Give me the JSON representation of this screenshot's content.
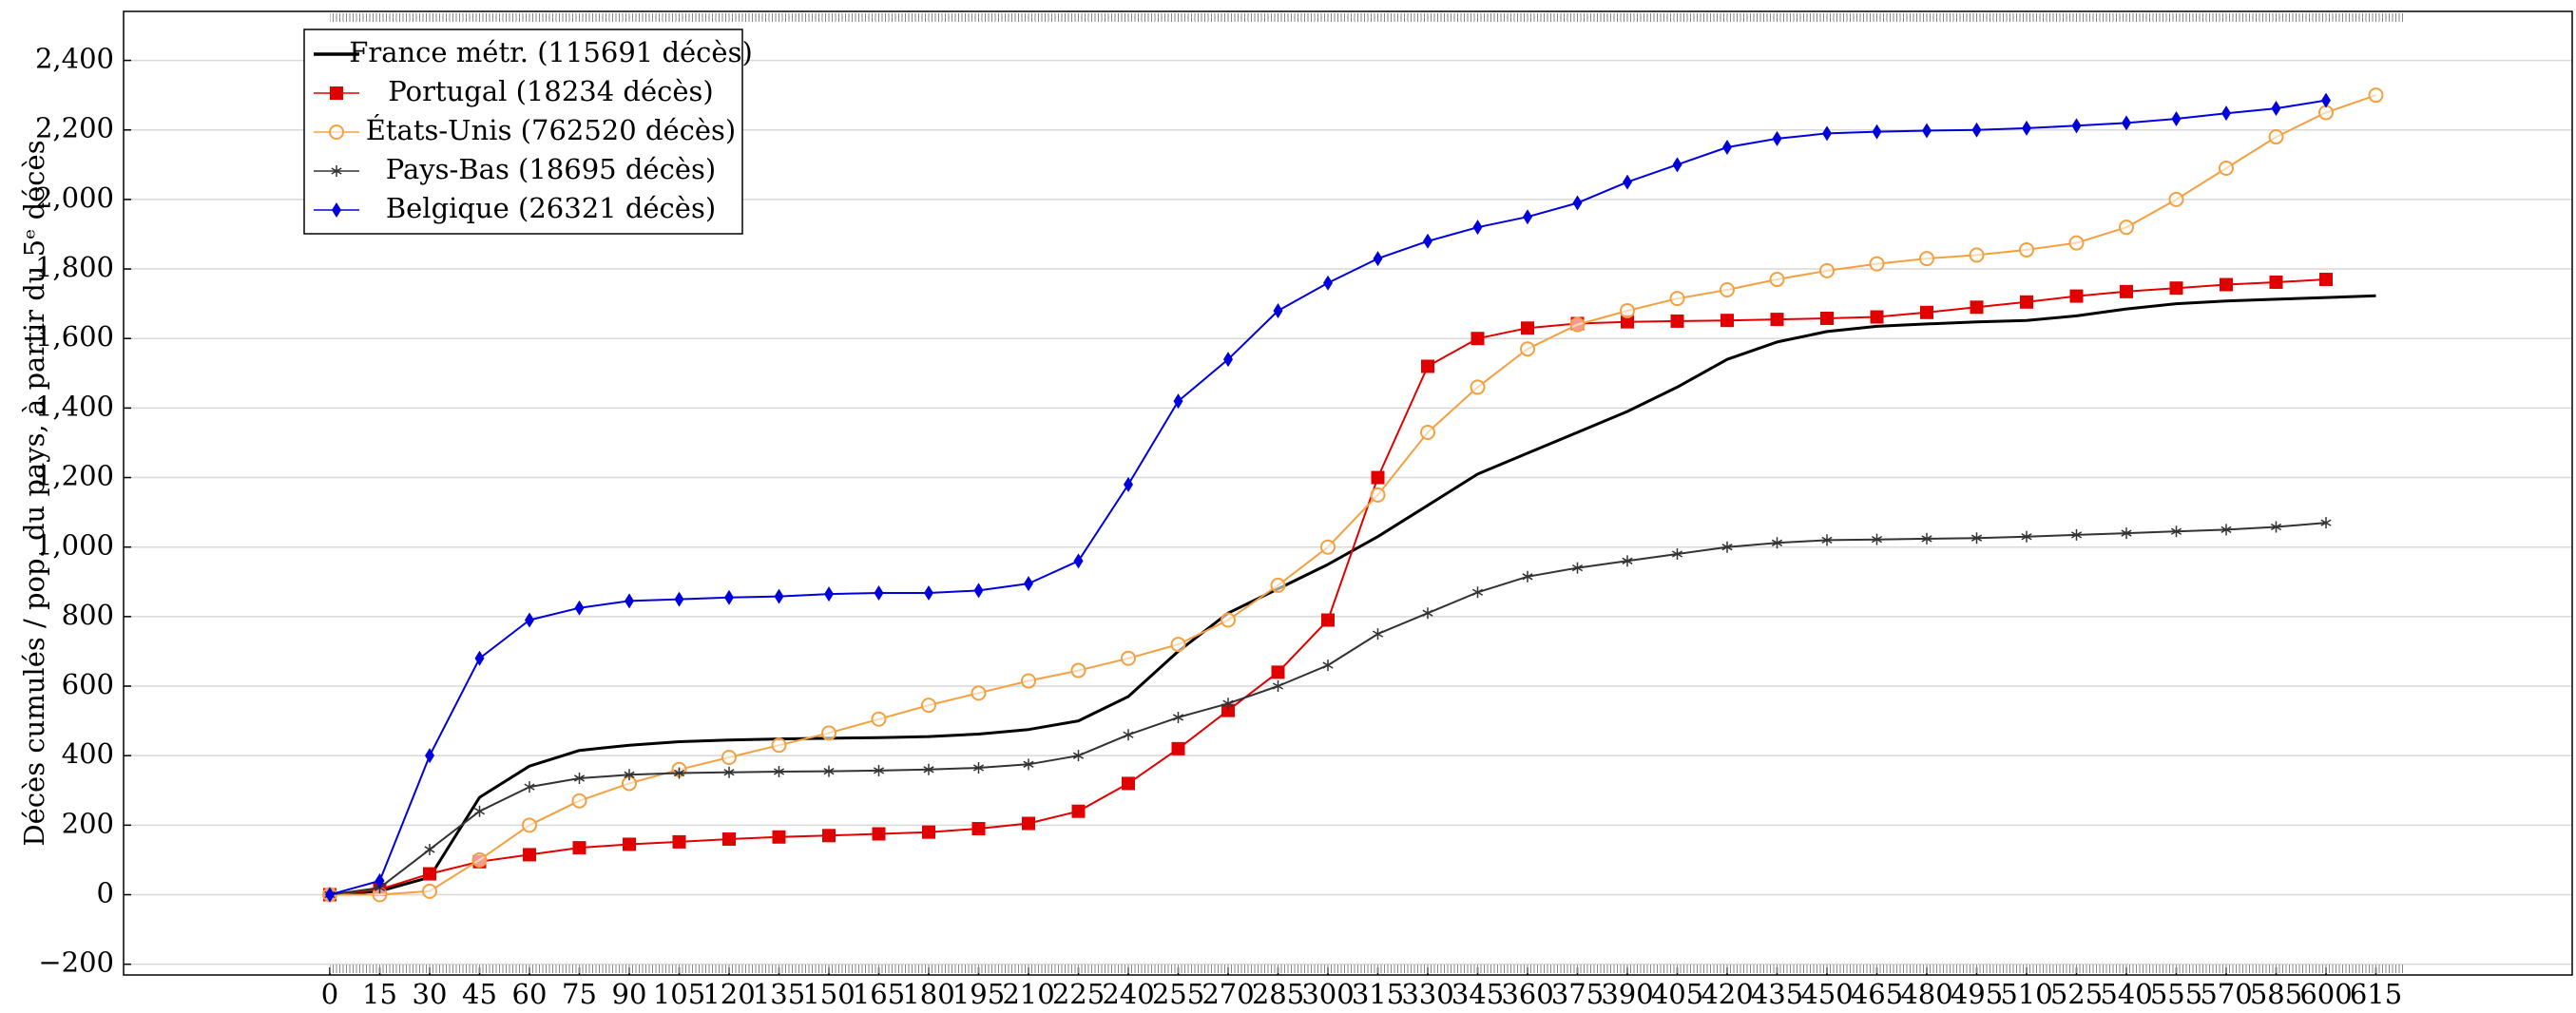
{
  "chart_data": {
    "type": "line",
    "y_label": "Décès cumulés / pop. du pays, à partir du 5ᵉ décès",
    "x": [
      0,
      15,
      30,
      45,
      60,
      75,
      90,
      105,
      120,
      135,
      150,
      165,
      180,
      195,
      210,
      225,
      240,
      255,
      270,
      285,
      300,
      315,
      330,
      345,
      360,
      375,
      390,
      405,
      420,
      435,
      450,
      465,
      480,
      495,
      510,
      525,
      540,
      555,
      570,
      585,
      600,
      615
    ],
    "xlim": [
      -62,
      674
    ],
    "xticks": [
      0,
      15,
      30,
      45,
      60,
      75,
      90,
      105,
      120,
      135,
      150,
      165,
      180,
      195,
      210,
      225,
      240,
      255,
      270,
      285,
      300,
      315,
      330,
      345,
      360,
      375,
      390,
      405,
      420,
      435,
      450,
      465,
      480,
      495,
      510,
      525,
      540,
      555,
      570,
      585,
      600,
      615
    ],
    "ylim": [
      -231,
      2541
    ],
    "yticks": [
      {
        "value": -200,
        "label": "−200"
      },
      0,
      200,
      400,
      600,
      800,
      {
        "value": 1000,
        "label": "1,000"
      },
      {
        "value": 1200,
        "label": "1,200"
      },
      {
        "value": 1400,
        "label": "1,400"
      },
      {
        "value": 1600,
        "label": "1,600"
      },
      {
        "value": 1800,
        "label": "1,800"
      },
      {
        "value": 2000,
        "label": "2,000"
      },
      {
        "value": 2200,
        "label": "2,200"
      },
      {
        "value": 2400,
        "label": "2,400"
      }
    ],
    "grid": true,
    "legend": "upper left",
    "series": [
      {
        "name": "France métr. (115691 décès)",
        "color": "#000000",
        "marker": "none",
        "values": [
          0,
          10,
          50,
          280,
          370,
          415,
          430,
          440,
          445,
          448,
          450,
          452,
          455,
          462,
          475,
          500,
          570,
          700,
          810,
          880,
          950,
          1030,
          1120,
          1210,
          1270,
          1330,
          1390,
          1460,
          1540,
          1590,
          1620,
          1635,
          1642,
          1648,
          1652,
          1665,
          1685,
          1700,
          1708,
          1713,
          1718,
          1723
        ]
      },
      {
        "name": "Portugal (18234 décès)",
        "color": "#e00000",
        "marker": "square",
        "values": [
          0,
          15,
          60,
          95,
          115,
          135,
          145,
          152,
          160,
          166,
          170,
          175,
          180,
          190,
          205,
          240,
          320,
          420,
          530,
          640,
          790,
          1200,
          1520,
          1600,
          1630,
          1643,
          1648,
          1650,
          1652,
          1655,
          1658,
          1662,
          1675,
          1690,
          1705,
          1722,
          1735,
          1745,
          1755,
          1762,
          1770,
          null
        ]
      },
      {
        "name": "États-Unis (762520 décès)",
        "color": "#f5a040",
        "marker": "circle",
        "values": [
          0,
          0,
          10,
          100,
          200,
          270,
          320,
          360,
          395,
          430,
          465,
          505,
          545,
          580,
          615,
          645,
          680,
          720,
          790,
          890,
          1000,
          1150,
          1330,
          1460,
          1570,
          1640,
          1680,
          1715,
          1740,
          1770,
          1795,
          1815,
          1830,
          1840,
          1855,
          1875,
          1920,
          2000,
          2090,
          2180,
          2250,
          2300
        ]
      },
      {
        "name": "Pays-Bas (18695 décès)",
        "color": "#333333",
        "marker": "star",
        "values": [
          0,
          20,
          130,
          240,
          310,
          335,
          345,
          350,
          352,
          354,
          355,
          357,
          360,
          365,
          375,
          400,
          460,
          510,
          550,
          600,
          660,
          750,
          810,
          870,
          915,
          940,
          960,
          980,
          1000,
          1012,
          1020,
          1022,
          1024,
          1026,
          1030,
          1035,
          1040,
          1045,
          1050,
          1058,
          1070,
          null
        ]
      },
      {
        "name": "Belgique (26321 décès)",
        "color": "#0000dd",
        "marker": "diamond",
        "values": [
          0,
          40,
          400,
          680,
          790,
          825,
          845,
          850,
          855,
          858,
          865,
          868,
          868,
          875,
          895,
          960,
          1180,
          1420,
          1540,
          1680,
          1760,
          1830,
          1880,
          1920,
          1950,
          1990,
          2050,
          2100,
          2150,
          2175,
          2190,
          2195,
          2198,
          2200,
          2205,
          2212,
          2220,
          2232,
          2248,
          2262,
          2285,
          null
        ]
      }
    ]
  }
}
